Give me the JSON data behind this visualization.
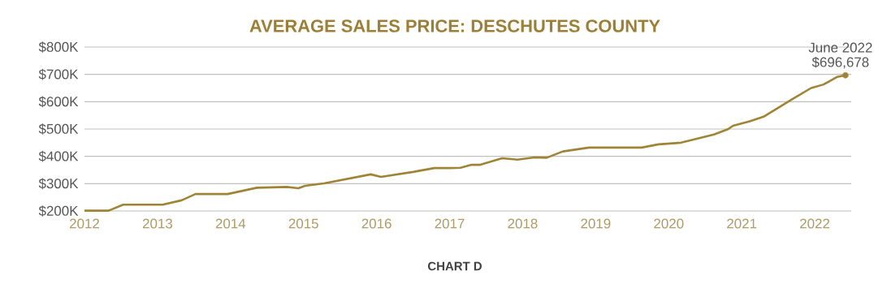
{
  "chart_data": {
    "type": "line",
    "title": "AVERAGE SALES PRICE: DESCHUTES COUNTY",
    "x": [
      2012.0,
      2012.33,
      2012.53,
      2013.07,
      2013.33,
      2013.52,
      2013.96,
      2014.36,
      2014.77,
      2014.93,
      2015.02,
      2015.28,
      2015.92,
      2016.06,
      2016.5,
      2016.79,
      2017.01,
      2017.15,
      2017.3,
      2017.42,
      2017.72,
      2017.93,
      2018.16,
      2018.33,
      2018.55,
      2018.91,
      2019.63,
      2019.86,
      2020.17,
      2020.62,
      2020.81,
      2020.88,
      2021.11,
      2021.3,
      2021.49,
      2021.68,
      2021.95,
      2022.12,
      2022.31,
      2022.42
    ],
    "series": [
      {
        "color": "#a08436",
        "values": [
          201,
          201,
          223,
          223,
          239,
          262,
          262,
          285,
          288,
          283,
          292,
          301,
          334,
          325,
          343,
          357,
          357,
          358,
          369,
          369,
          393,
          388,
          396,
          395,
          418,
          432,
          432,
          444,
          450,
          480,
          499,
          512,
          528,
          545,
          576,
          607,
          650,
          663,
          691,
          696.678
        ]
      }
    ],
    "xlim": [
      2012,
      2022.5
    ],
    "xticks": [
      2012,
      2013,
      2014,
      2015,
      2016,
      2017,
      2018,
      2019,
      2020,
      2021,
      2022
    ],
    "ylim": [
      200,
      800
    ],
    "yticks": [
      {
        "value": 200,
        "label": "$200K"
      },
      {
        "value": 300,
        "label": "$300K"
      },
      {
        "value": 400,
        "label": "$400K"
      },
      {
        "value": 500,
        "label": "$500K"
      },
      {
        "value": 600,
        "label": "$600K"
      },
      {
        "value": 700,
        "label": "$700K"
      },
      {
        "value": 800,
        "label": "$800K"
      }
    ],
    "grid": "y",
    "legend": false,
    "marker": "none",
    "line_style": "solid",
    "annotations": [
      {
        "text": "June 2022",
        "x": 2022.42,
        "y": 696.678
      },
      {
        "text": "$696,678",
        "x": 2022.42,
        "y": 696.678
      },
      "CHART D"
    ]
  }
}
